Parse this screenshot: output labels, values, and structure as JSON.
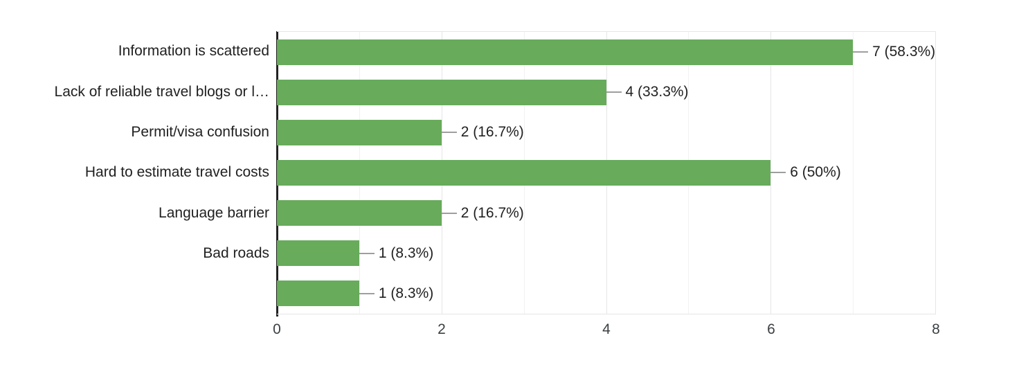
{
  "chart": {
    "theme": {
      "bg": "#ffffff",
      "bar": "#67ab5b",
      "axis": "#212121",
      "grid": "#e6e6e6",
      "grid-minor": "#f2f2f2",
      "leader": "#9e9e9e",
      "label": "#212121",
      "tick": "#3c4043"
    }
  },
  "chart_data": {
    "type": "bar",
    "orientation": "horizontal",
    "title": "",
    "xlabel": "",
    "ylabel": "",
    "categories": [
      "Information is scattered",
      "Lack of reliable travel blogs or l…",
      "Permit/visa confusion",
      "Hard to estimate travel costs",
      "Language barrier",
      "Bad roads",
      ""
    ],
    "values": [
      7,
      4,
      2,
      6,
      2,
      1,
      1
    ],
    "value_labels": [
      "7 (58.3%)",
      "4 (33.3%)",
      "2 (16.7%)",
      "6 (50%)",
      "2 (16.7%)",
      "1 (8.3%)",
      "1 (8.3%)"
    ],
    "x_ticks": [
      0,
      2,
      4,
      6,
      8
    ],
    "xlim": [
      0,
      8
    ],
    "grid": "on",
    "legend": "none"
  }
}
